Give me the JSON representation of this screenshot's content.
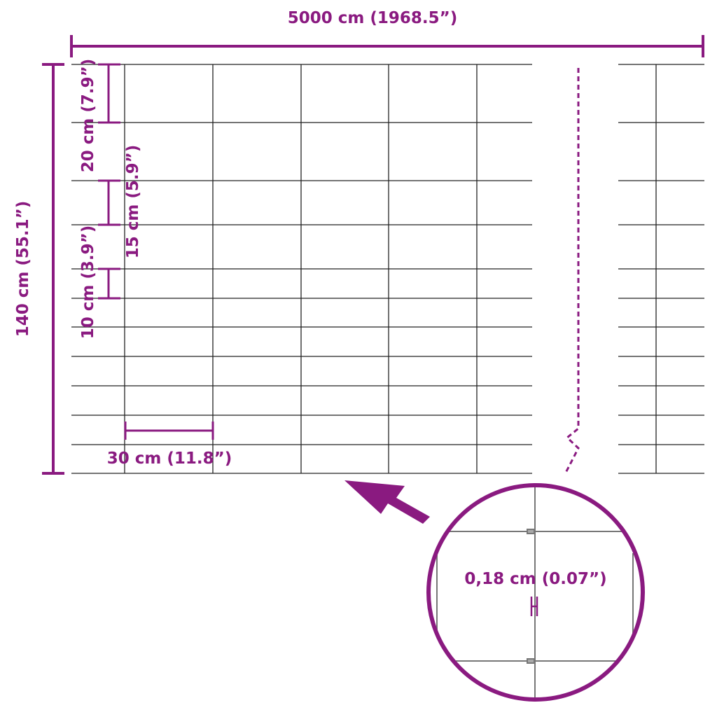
{
  "colors": {
    "accent": "#8a1a80",
    "wire": "#222222"
  },
  "dimensions": {
    "total_length": "5000 cm (1968.5”)",
    "total_height": "140 cm (55.1”)",
    "top_spacing": "20 cm (7.9”)",
    "middle_spacing": "15 cm (5.9”)",
    "bottom_spacing": "10 cm (3.9”)",
    "post_spacing": "30 cm (11.8”)",
    "wire_diameter": "0,18 cm (0.07”)"
  }
}
